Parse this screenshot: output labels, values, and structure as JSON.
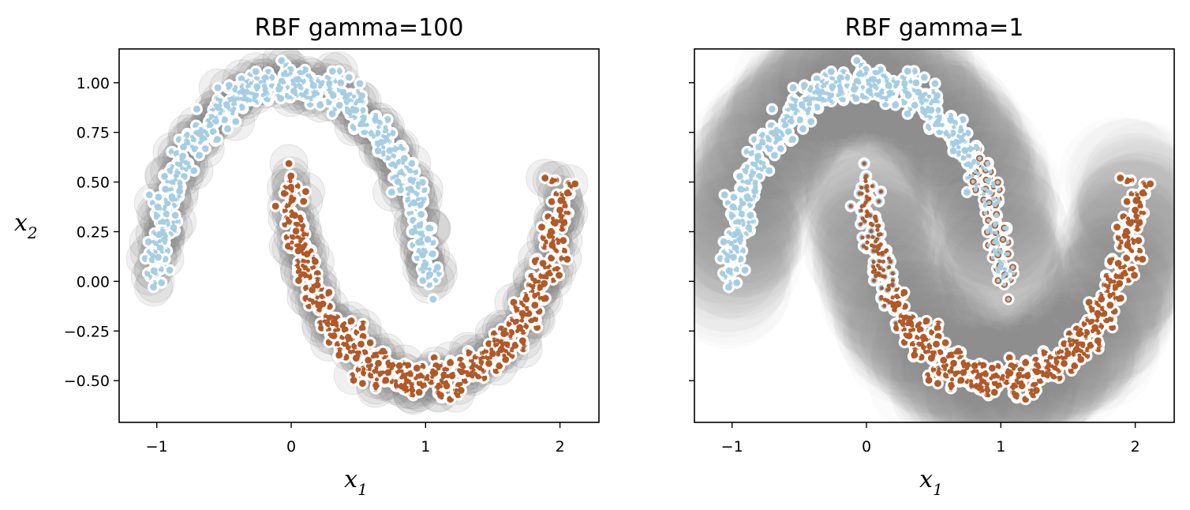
{
  "chart_data": [
    {
      "type": "scatter",
      "title": "RBF gamma=100",
      "xlabel": "x",
      "xlabel_sub": "1",
      "ylabel": "x",
      "ylabel_sub": "2",
      "xlim": [
        -1.28,
        2.29
      ],
      "ylim": [
        -0.71,
        1.17
      ],
      "xticks": [
        -1,
        0,
        1,
        2
      ],
      "yticks": [
        -0.5,
        -0.25,
        0.0,
        0.25,
        0.5,
        0.75,
        1.0
      ],
      "xtick_labels": [
        "−1",
        "0",
        "1",
        "2"
      ],
      "ytick_labels": [
        "−0.50",
        "−0.25",
        "0.00",
        "0.25",
        "0.50",
        "0.75",
        "1.00"
      ],
      "show_ytick_labels": true,
      "dataset": "two interleaving half-moons, 1000 points, noise 0.05",
      "series": [
        {
          "class": 0,
          "color": "#a6cee3",
          "shape": "upper arc: (cos t, sin t), t in [0, π]"
        },
        {
          "class": 1,
          "color": "#b15928",
          "shape": "lower arc: (1 − cos t, 0.5 − sin t), t in [0, π]"
        }
      ],
      "support_vector_color": "#808080",
      "predicted_boundary": "class 1 where x2 < 0.5 − sin(acos(1 − x1))"
    },
    {
      "type": "scatter",
      "title": "RBF gamma=1",
      "xlabel": "x",
      "xlabel_sub": "1",
      "ylabel": "",
      "ylabel_sub": "",
      "xlim": [
        -1.28,
        2.29
      ],
      "ylim": [
        -0.71,
        1.17
      ],
      "xticks": [
        -1,
        0,
        1,
        2
      ],
      "yticks": [
        -0.5,
        -0.25,
        0.0,
        0.25,
        0.5,
        0.75,
        1.0
      ],
      "xtick_labels": [
        "−1",
        "0",
        "1",
        "2"
      ],
      "ytick_labels": [],
      "show_ytick_labels": false,
      "dataset": "two interleaving half-moons, 1000 points, noise 0.05",
      "series": [
        {
          "class": 0,
          "color": "#a6cee3",
          "shape": "upper arc: (cos t, sin t), t in [0, π]"
        },
        {
          "class": 1,
          "color": "#b15928",
          "shape": "lower arc: (1 − cos t, 0.5 − sin t), t in [0, π]"
        }
      ],
      "support_vector_color": "#808080",
      "predicted_boundary": "smooth tanh-like curve: lower arc predicted from x1≈0.25 to 0.7 on upper moon and from x1≈0.25 on lower moon"
    }
  ],
  "colors": {
    "class0": "#a6cee3",
    "class1": "#b15928",
    "sv_halo": "#808080",
    "edge": "#ffffff",
    "axes": "#000000"
  }
}
